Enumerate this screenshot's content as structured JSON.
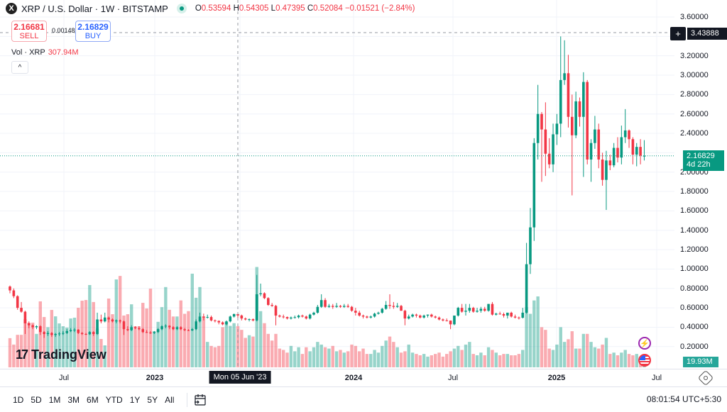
{
  "header": {
    "logo_letter": "X",
    "title": "XRP / U.S. Dollar · 1W · BITSTAMP",
    "ohlc": {
      "o_label": "O",
      "o": "0.53594",
      "h_label": "H",
      "h": "0.54305",
      "l_label": "L",
      "l": "0.47395",
      "c_label": "C",
      "c": "0.52084",
      "change": "−0.01521 (−2.84%)"
    },
    "market_status_color": "#089981"
  },
  "trade": {
    "sell_price": "2.16681",
    "sell_label": "SELL",
    "spread": "0.00148",
    "buy_price": "2.16829",
    "buy_label": "BUY"
  },
  "volume_legend": {
    "label": "Vol · XRP",
    "value": "307.94M"
  },
  "collapse_icon": "chevron-up-icon",
  "collapse_glyph": "^",
  "crosshair": {
    "price": "3.43888",
    "date": "Mon 05 Jun '23",
    "plus_glyph": "+"
  },
  "current_price": {
    "price": "2.16829",
    "countdown": "4d 22h"
  },
  "last_volume": "19.93M",
  "brand": {
    "mark": "17",
    "name": "TradingView"
  },
  "time_axis": [
    "Jul",
    "2023",
    "2024",
    "Jul",
    "2025",
    "Jul"
  ],
  "toolbar": {
    "ranges": [
      "1D",
      "5D",
      "1M",
      "3M",
      "6M",
      "YTD",
      "1Y",
      "5Y",
      "All"
    ],
    "clock": "08:01:54 UTC+5:30"
  },
  "colors": {
    "up": "#089981",
    "down": "#F23645",
    "crosshair_bg": "#131722"
  },
  "chart_data": {
    "type": "candlestick",
    "symbol": "XRP / U.S. Dollar",
    "interval": "1W",
    "y_ticks": [
      "3.60000",
      "3.20000",
      "3.00000",
      "2.80000",
      "2.60000",
      "2.40000",
      "2.00000",
      "1.80000",
      "1.60000",
      "1.40000",
      "1.20000",
      "1.00000",
      "0.80000",
      "0.60000",
      "0.40000",
      "0.20000"
    ],
    "ylim": [
      0,
      3.6
    ],
    "grid": true,
    "columns": [
      "open",
      "high",
      "low",
      "close",
      "volume_M"
    ],
    "candles": [
      [
        0.82,
        0.83,
        0.75,
        0.78,
        218
      ],
      [
        0.78,
        0.8,
        0.7,
        0.72,
        170
      ],
      [
        0.72,
        0.73,
        0.58,
        0.6,
        243
      ],
      [
        0.6,
        0.66,
        0.55,
        0.56,
        243
      ],
      [
        0.56,
        0.57,
        0.33,
        0.44,
        360
      ],
      [
        0.44,
        0.46,
        0.39,
        0.42,
        334
      ],
      [
        0.42,
        0.43,
        0.38,
        0.4,
        334
      ],
      [
        0.4,
        0.42,
        0.38,
        0.41,
        250
      ],
      [
        0.41,
        0.42,
        0.32,
        0.35,
        493
      ],
      [
        0.35,
        0.36,
        0.29,
        0.33,
        376
      ],
      [
        0.33,
        0.36,
        0.31,
        0.34,
        300
      ],
      [
        0.34,
        0.35,
        0.3,
        0.32,
        429
      ],
      [
        0.32,
        0.34,
        0.3,
        0.33,
        381
      ],
      [
        0.33,
        0.35,
        0.31,
        0.335,
        328
      ],
      [
        0.335,
        0.36,
        0.32,
        0.34,
        307
      ],
      [
        0.34,
        0.38,
        0.33,
        0.36,
        297
      ],
      [
        0.36,
        0.39,
        0.35,
        0.37,
        365
      ],
      [
        0.37,
        0.39,
        0.35,
        0.375,
        371
      ],
      [
        0.375,
        0.38,
        0.33,
        0.34,
        445
      ],
      [
        0.34,
        0.35,
        0.32,
        0.33,
        498
      ],
      [
        0.33,
        0.34,
        0.32,
        0.328,
        503
      ],
      [
        0.328,
        0.36,
        0.32,
        0.35,
        615
      ],
      [
        0.35,
        0.36,
        0.31,
        0.33,
        488
      ],
      [
        0.33,
        0.55,
        0.32,
        0.48,
        291
      ],
      [
        0.48,
        0.53,
        0.44,
        0.46,
        212
      ],
      [
        0.46,
        0.55,
        0.45,
        0.5,
        164
      ],
      [
        0.5,
        0.51,
        0.45,
        0.48,
        514
      ],
      [
        0.48,
        0.49,
        0.45,
        0.46,
        397
      ],
      [
        0.46,
        0.48,
        0.44,
        0.47,
        657
      ],
      [
        0.47,
        0.48,
        0.44,
        0.46,
        683
      ],
      [
        0.46,
        0.47,
        0.32,
        0.38,
        387
      ],
      [
        0.38,
        0.41,
        0.36,
        0.37,
        397
      ],
      [
        0.37,
        0.42,
        0.36,
        0.4,
        471
      ],
      [
        0.4,
        0.41,
        0.38,
        0.39,
        307
      ],
      [
        0.39,
        0.41,
        0.37,
        0.38,
        307
      ],
      [
        0.38,
        0.39,
        0.34,
        0.35,
        482
      ],
      [
        0.35,
        0.37,
        0.34,
        0.345,
        440
      ],
      [
        0.345,
        0.36,
        0.33,
        0.34,
        588
      ],
      [
        0.34,
        0.36,
        0.33,
        0.35,
        270
      ],
      [
        0.35,
        0.39,
        0.34,
        0.38,
        340
      ],
      [
        0.38,
        0.42,
        0.37,
        0.41,
        450
      ],
      [
        0.41,
        0.43,
        0.39,
        0.415,
        600
      ],
      [
        0.415,
        0.42,
        0.38,
        0.4,
        430
      ],
      [
        0.4,
        0.41,
        0.37,
        0.38,
        380
      ],
      [
        0.38,
        0.41,
        0.37,
        0.4,
        380
      ],
      [
        0.4,
        0.41,
        0.37,
        0.38,
        500
      ],
      [
        0.38,
        0.39,
        0.36,
        0.37,
        400
      ],
      [
        0.37,
        0.38,
        0.36,
        0.368,
        420
      ],
      [
        0.368,
        0.39,
        0.36,
        0.38,
        700
      ],
      [
        0.38,
        0.48,
        0.37,
        0.46,
        520
      ],
      [
        0.46,
        0.55,
        0.45,
        0.51,
        600
      ],
      [
        0.51,
        0.54,
        0.47,
        0.5,
        380
      ],
      [
        0.5,
        0.53,
        0.49,
        0.505,
        190
      ],
      [
        0.505,
        0.52,
        0.46,
        0.47,
        160
      ],
      [
        0.47,
        0.48,
        0.45,
        0.465,
        150
      ],
      [
        0.465,
        0.47,
        0.43,
        0.45,
        160
      ],
      [
        0.45,
        0.46,
        0.42,
        0.43,
        300
      ],
      [
        0.43,
        0.47,
        0.42,
        0.46,
        340
      ],
      [
        0.46,
        0.52,
        0.45,
        0.51,
        310
      ],
      [
        0.51,
        0.54,
        0.5,
        0.536,
        330
      ],
      [
        0.53594,
        0.54305,
        0.47395,
        0.52084,
        307.94
      ],
      [
        0.521,
        0.53,
        0.47,
        0.49,
        280
      ],
      [
        0.49,
        0.5,
        0.47,
        0.48,
        220
      ],
      [
        0.48,
        0.49,
        0.46,
        0.483,
        240
      ],
      [
        0.483,
        0.49,
        0.46,
        0.47,
        230
      ],
      [
        0.47,
        0.94,
        0.46,
        0.74,
        750
      ],
      [
        0.74,
        0.85,
        0.72,
        0.75,
        420
      ],
      [
        0.75,
        0.76,
        0.69,
        0.7,
        330
      ],
      [
        0.7,
        0.71,
        0.62,
        0.63,
        250
      ],
      [
        0.63,
        0.65,
        0.61,
        0.62,
        200
      ],
      [
        0.62,
        0.63,
        0.42,
        0.52,
        250
      ],
      [
        0.52,
        0.53,
        0.5,
        0.51,
        140
      ],
      [
        0.51,
        0.53,
        0.49,
        0.505,
        130
      ],
      [
        0.505,
        0.51,
        0.48,
        0.49,
        110
      ],
      [
        0.49,
        0.51,
        0.48,
        0.5,
        160
      ],
      [
        0.5,
        0.52,
        0.49,
        0.503,
        120
      ],
      [
        0.503,
        0.53,
        0.49,
        0.52,
        150
      ],
      [
        0.52,
        0.53,
        0.5,
        0.51,
        100
      ],
      [
        0.51,
        0.52,
        0.48,
        0.49,
        150
      ],
      [
        0.49,
        0.54,
        0.48,
        0.53,
        120
      ],
      [
        0.53,
        0.56,
        0.52,
        0.55,
        150
      ],
      [
        0.55,
        0.63,
        0.54,
        0.61,
        190
      ],
      [
        0.61,
        0.74,
        0.6,
        0.68,
        170
      ],
      [
        0.68,
        0.7,
        0.6,
        0.61,
        150
      ],
      [
        0.61,
        0.64,
        0.6,
        0.62,
        140
      ],
      [
        0.62,
        0.64,
        0.59,
        0.61,
        160
      ],
      [
        0.61,
        0.65,
        0.6,
        0.62,
        120
      ],
      [
        0.62,
        0.63,
        0.6,
        0.61,
        130
      ],
      [
        0.61,
        0.64,
        0.6,
        0.62,
        110
      ],
      [
        0.62,
        0.64,
        0.6,
        0.61,
        120
      ],
      [
        0.61,
        0.62,
        0.56,
        0.57,
        170
      ],
      [
        0.57,
        0.6,
        0.52,
        0.55,
        160
      ],
      [
        0.55,
        0.57,
        0.51,
        0.52,
        120
      ],
      [
        0.52,
        0.53,
        0.49,
        0.51,
        140
      ],
      [
        0.51,
        0.52,
        0.49,
        0.5,
        100
      ],
      [
        0.5,
        0.52,
        0.49,
        0.51,
        100
      ],
      [
        0.51,
        0.55,
        0.5,
        0.54,
        130
      ],
      [
        0.54,
        0.56,
        0.53,
        0.55,
        110
      ],
      [
        0.55,
        0.6,
        0.54,
        0.59,
        160
      ],
      [
        0.59,
        0.67,
        0.58,
        0.63,
        200
      ],
      [
        0.63,
        0.74,
        0.59,
        0.62,
        230
      ],
      [
        0.62,
        0.66,
        0.59,
        0.61,
        190
      ],
      [
        0.61,
        0.65,
        0.6,
        0.62,
        150
      ],
      [
        0.62,
        0.63,
        0.57,
        0.57,
        110
      ],
      [
        0.57,
        0.58,
        0.42,
        0.49,
        120
      ],
      [
        0.49,
        0.53,
        0.48,
        0.51,
        170
      ],
      [
        0.51,
        0.54,
        0.5,
        0.53,
        110
      ],
      [
        0.53,
        0.54,
        0.5,
        0.52,
        100
      ],
      [
        0.52,
        0.53,
        0.49,
        0.5,
        90
      ],
      [
        0.5,
        0.53,
        0.49,
        0.52,
        100
      ],
      [
        0.52,
        0.53,
        0.5,
        0.53,
        80
      ],
      [
        0.53,
        0.54,
        0.5,
        0.51,
        90
      ],
      [
        0.51,
        0.52,
        0.49,
        0.5,
        100
      ],
      [
        0.5,
        0.51,
        0.47,
        0.48,
        110
      ],
      [
        0.48,
        0.49,
        0.46,
        0.47,
        80
      ],
      [
        0.47,
        0.49,
        0.46,
        0.468,
        100
      ],
      [
        0.468,
        0.47,
        0.38,
        0.43,
        120
      ],
      [
        0.43,
        0.52,
        0.42,
        0.52,
        140
      ],
      [
        0.52,
        0.61,
        0.51,
        0.6,
        160
      ],
      [
        0.6,
        0.64,
        0.55,
        0.56,
        130
      ],
      [
        0.56,
        0.64,
        0.52,
        0.57,
        170
      ],
      [
        0.57,
        0.64,
        0.55,
        0.6,
        190
      ],
      [
        0.6,
        0.61,
        0.55,
        0.56,
        100
      ],
      [
        0.56,
        0.6,
        0.55,
        0.57,
        90
      ],
      [
        0.57,
        0.61,
        0.55,
        0.59,
        110
      ],
      [
        0.59,
        0.61,
        0.56,
        0.57,
        90
      ],
      [
        0.57,
        0.64,
        0.56,
        0.64,
        150
      ],
      [
        0.64,
        0.66,
        0.52,
        0.53,
        130
      ],
      [
        0.53,
        0.55,
        0.52,
        0.54,
        110
      ],
      [
        0.54,
        0.56,
        0.53,
        0.535,
        90
      ],
      [
        0.535,
        0.55,
        0.5,
        0.52,
        100
      ],
      [
        0.52,
        0.55,
        0.49,
        0.55,
        100
      ],
      [
        0.55,
        0.56,
        0.5,
        0.51,
        90
      ],
      [
        0.51,
        0.53,
        0.49,
        0.5,
        90
      ],
      [
        0.5,
        0.51,
        0.48,
        0.498,
        100
      ],
      [
        0.498,
        0.6,
        0.49,
        0.55,
        130
      ],
      [
        0.55,
        1.27,
        0.54,
        1.05,
        450
      ],
      [
        1.05,
        1.63,
        0.95,
        1.43,
        400
      ],
      [
        1.43,
        2.35,
        1.29,
        2.3,
        500
      ],
      [
        2.3,
        2.9,
        2.13,
        2.6,
        530
      ],
      [
        2.6,
        2.62,
        1.9,
        2.44,
        300
      ],
      [
        2.44,
        2.72,
        1.96,
        2.19,
        280
      ],
      [
        2.19,
        2.35,
        2.04,
        2.08,
        140
      ],
      [
        2.08,
        2.5,
        2.0,
        2.39,
        130
      ],
      [
        2.39,
        2.6,
        2.28,
        2.5,
        170
      ],
      [
        2.5,
        3.4,
        2.36,
        2.95,
        300
      ],
      [
        2.95,
        3.36,
        2.9,
        3.02,
        190
      ],
      [
        3.02,
        3.21,
        2.46,
        2.57,
        210
      ],
      [
        2.57,
        2.8,
        1.76,
        2.38,
        270
      ],
      [
        2.38,
        2.83,
        2.35,
        2.73,
        140
      ],
      [
        2.73,
        2.77,
        2.47,
        2.57,
        140
      ],
      [
        2.57,
        3.03,
        1.95,
        2.93,
        250
      ],
      [
        2.93,
        2.95,
        2.08,
        2.13,
        250
      ],
      [
        2.13,
        2.34,
        1.9,
        2.3,
        190
      ],
      [
        2.3,
        2.58,
        2.24,
        2.44,
        150
      ],
      [
        2.44,
        2.5,
        2.04,
        2.13,
        140
      ],
      [
        2.13,
        2.2,
        1.86,
        1.92,
        170
      ],
      [
        1.92,
        2.22,
        1.61,
        2.12,
        220
      ],
      [
        2.12,
        2.18,
        2.02,
        2.07,
        100
      ],
      [
        2.07,
        2.3,
        2.05,
        2.25,
        110
      ],
      [
        2.25,
        2.36,
        2.1,
        2.15,
        90
      ],
      [
        2.15,
        2.48,
        2.08,
        2.36,
        110
      ],
      [
        2.36,
        2.65,
        2.3,
        2.43,
        130
      ],
      [
        2.43,
        2.44,
        2.25,
        2.34,
        100
      ],
      [
        2.34,
        2.36,
        2.08,
        2.18,
        90
      ],
      [
        2.18,
        2.3,
        2.06,
        2.26,
        100
      ],
      [
        2.26,
        2.34,
        2.08,
        2.17,
        80
      ],
      [
        2.165,
        2.33,
        2.12,
        2.16829,
        19.93
      ]
    ]
  }
}
